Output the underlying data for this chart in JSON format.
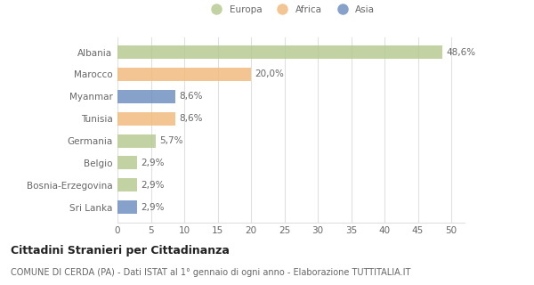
{
  "categories": [
    "Albania",
    "Marocco",
    "Myanmar",
    "Tunisia",
    "Germania",
    "Belgio",
    "Bosnia-Erzegovina",
    "Sri Lanka"
  ],
  "values": [
    48.6,
    20.0,
    8.6,
    8.6,
    5.7,
    2.9,
    2.9,
    2.9
  ],
  "labels": [
    "48,6%",
    "20,0%",
    "8,6%",
    "8,6%",
    "5,7%",
    "2,9%",
    "2,9%",
    "2,9%"
  ],
  "colors": [
    "#b5c98e",
    "#f0b97a",
    "#6b8cbf",
    "#f0b97a",
    "#b5c98e",
    "#b5c98e",
    "#b5c98e",
    "#6b8cbf"
  ],
  "legend_labels": [
    "Europa",
    "Africa",
    "Asia"
  ],
  "legend_colors": [
    "#b5c98e",
    "#f0b97a",
    "#6b8cbf"
  ],
  "xlim": [
    0,
    52
  ],
  "xticks": [
    0,
    5,
    10,
    15,
    20,
    25,
    30,
    35,
    40,
    45,
    50
  ],
  "title": "Cittadini Stranieri per Cittadinanza",
  "subtitle": "COMUNE DI CERDA (PA) - Dati ISTAT al 1° gennaio di ogni anno - Elaborazione TUTTITALIA.IT",
  "bg_color": "#ffffff",
  "grid_color": "#e0e0e0",
  "bar_height": 0.6,
  "label_fontsize": 7.5,
  "tick_fontsize": 7.5,
  "title_fontsize": 9,
  "subtitle_fontsize": 7,
  "text_color": "#666666"
}
